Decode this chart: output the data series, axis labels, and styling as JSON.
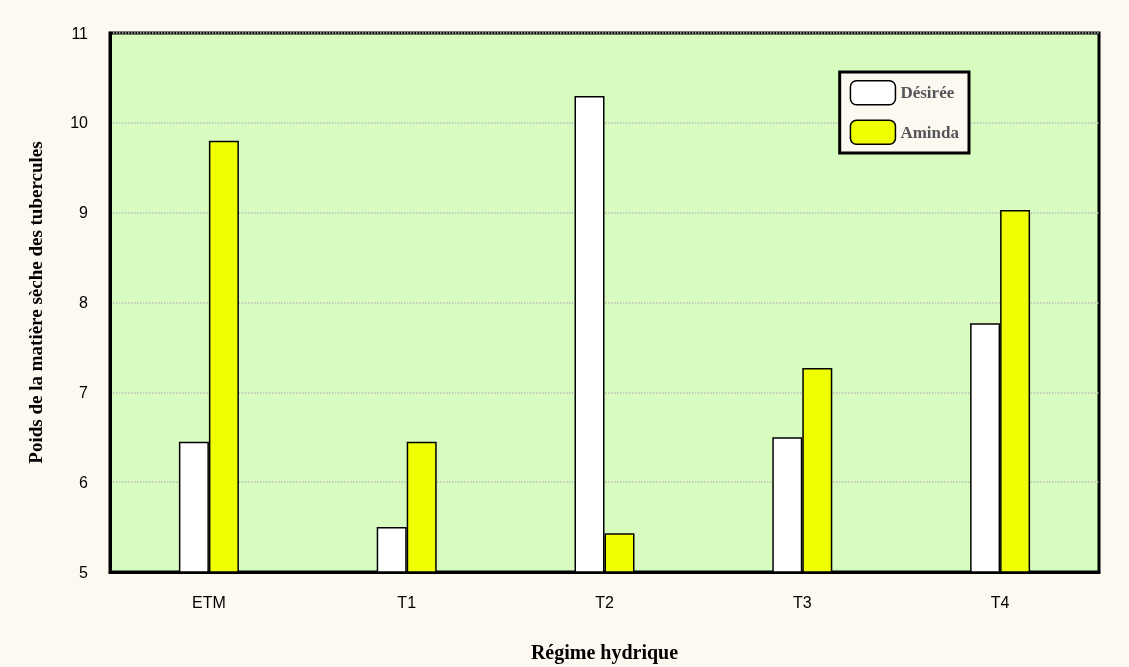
{
  "chart_data": {
    "type": "bar",
    "xlabel": "Régime hydrique",
    "ylabel": "Poids de la matière sèche des tubercules",
    "categories": [
      "ETM",
      "T1",
      "T2",
      "T3",
      "T4"
    ],
    "series": [
      {
        "name": "Désirée",
        "color": "#ffffff",
        "values": [
          6.45,
          5.5,
          10.3,
          6.5,
          7.77
        ]
      },
      {
        "name": "Aminda",
        "color": "#f0ff00",
        "values": [
          9.8,
          6.45,
          5.43,
          7.27,
          9.03
        ]
      }
    ],
    "ylim": [
      5,
      11
    ],
    "yticks": [
      5,
      6,
      7,
      8,
      9,
      10,
      11
    ],
    "grid": "y",
    "legend": "top right"
  }
}
